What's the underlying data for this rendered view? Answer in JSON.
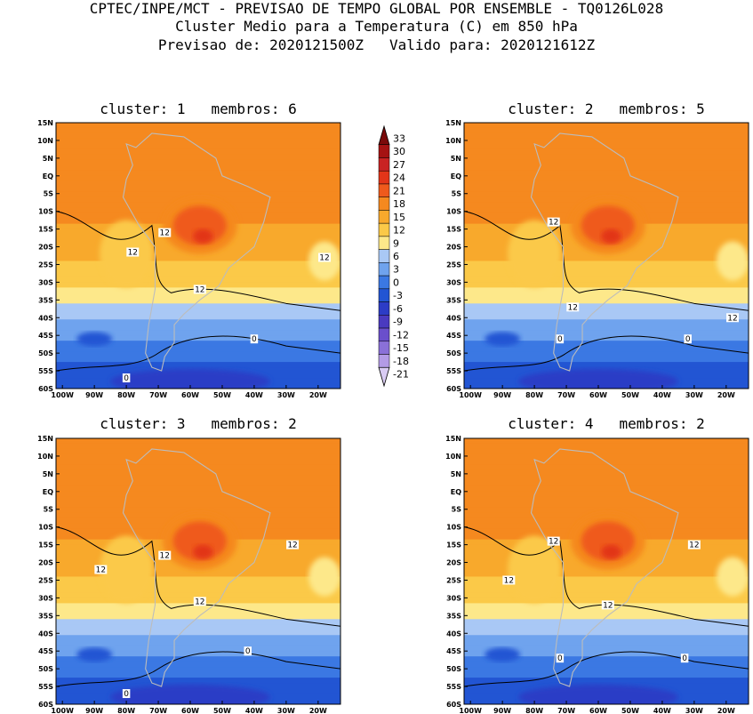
{
  "header": {
    "line1": "CPTEC/INPE/MCT - PREVISAO DE TEMPO GLOBAL POR ENSEMBLE - TQ0126L028",
    "line2": "Cluster Medio para a Temperatura (C) em 850 hPa",
    "line3": "Previsao de: 2020121500Z   Valido para: 2020121612Z"
  },
  "axes": {
    "lat_labels": [
      "15N",
      "10N",
      "5N",
      "EQ",
      "5S",
      "10S",
      "15S",
      "20S",
      "25S",
      "30S",
      "35S",
      "40S",
      "45S",
      "50S",
      "55S",
      "60S"
    ],
    "lon_labels": [
      "100W",
      "90W",
      "80W",
      "70W",
      "60W",
      "50W",
      "40W",
      "30W",
      "20W"
    ]
  },
  "colorbar": {
    "levels": [
      "33",
      "30",
      "27",
      "24",
      "21",
      "18",
      "15",
      "12",
      "9",
      "6",
      "3",
      "0",
      "-3",
      "-6",
      "-9",
      "-12",
      "-15",
      "-18",
      "-21"
    ],
    "colors": [
      "#7a0a0a",
      "#a51313",
      "#c92323",
      "#e23519",
      "#ef5a1c",
      "#f5891f",
      "#f8a92c",
      "#fbc948",
      "#fde88a",
      "#a9c8f5",
      "#6fa3ee",
      "#3b78e3",
      "#2255d3",
      "#2c3cc6",
      "#4a3ac0",
      "#6a4fcc",
      "#8a70d8",
      "#b39be6",
      "#d9ccf3"
    ]
  },
  "panels": [
    {
      "title": "cluster: 1   membros: 6",
      "labels": [
        {
          "text": "12",
          "lon": -78,
          "lat": -21.5
        },
        {
          "text": "12",
          "lon": -68,
          "lat": -16
        },
        {
          "text": "12",
          "lon": -57,
          "lat": -32
        },
        {
          "text": "12",
          "lon": -18,
          "lat": -23
        },
        {
          "text": "0",
          "lon": -40,
          "lat": -46
        },
        {
          "text": "0",
          "lon": -80,
          "lat": -57
        }
      ]
    },
    {
      "title": "cluster: 2   membros: 5",
      "labels": [
        {
          "text": "12",
          "lon": -74,
          "lat": -13
        },
        {
          "text": "12",
          "lon": -68,
          "lat": -37
        },
        {
          "text": "12",
          "lon": -18,
          "lat": -40
        },
        {
          "text": "0",
          "lon": -72,
          "lat": -46
        },
        {
          "text": "0",
          "lon": -32,
          "lat": -46
        }
      ]
    },
    {
      "title": "cluster: 3   membros: 2",
      "labels": [
        {
          "text": "12",
          "lon": -88,
          "lat": -22
        },
        {
          "text": "12",
          "lon": -68,
          "lat": -18
        },
        {
          "text": "12",
          "lon": -57,
          "lat": -31
        },
        {
          "text": "12",
          "lon": -28,
          "lat": -15
        },
        {
          "text": "0",
          "lon": -42,
          "lat": -45
        },
        {
          "text": "0",
          "lon": -80,
          "lat": -57
        }
      ]
    },
    {
      "title": "cluster: 4   membros: 2",
      "labels": [
        {
          "text": "12",
          "lon": -74,
          "lat": -14
        },
        {
          "text": "12",
          "lon": -88,
          "lat": -25
        },
        {
          "text": "12",
          "lon": -57,
          "lat": -32
        },
        {
          "text": "12",
          "lon": -30,
          "lat": -15
        },
        {
          "text": "0",
          "lon": -72,
          "lat": -47
        },
        {
          "text": "0",
          "lon": -33,
          "lat": -47
        }
      ]
    }
  ]
}
